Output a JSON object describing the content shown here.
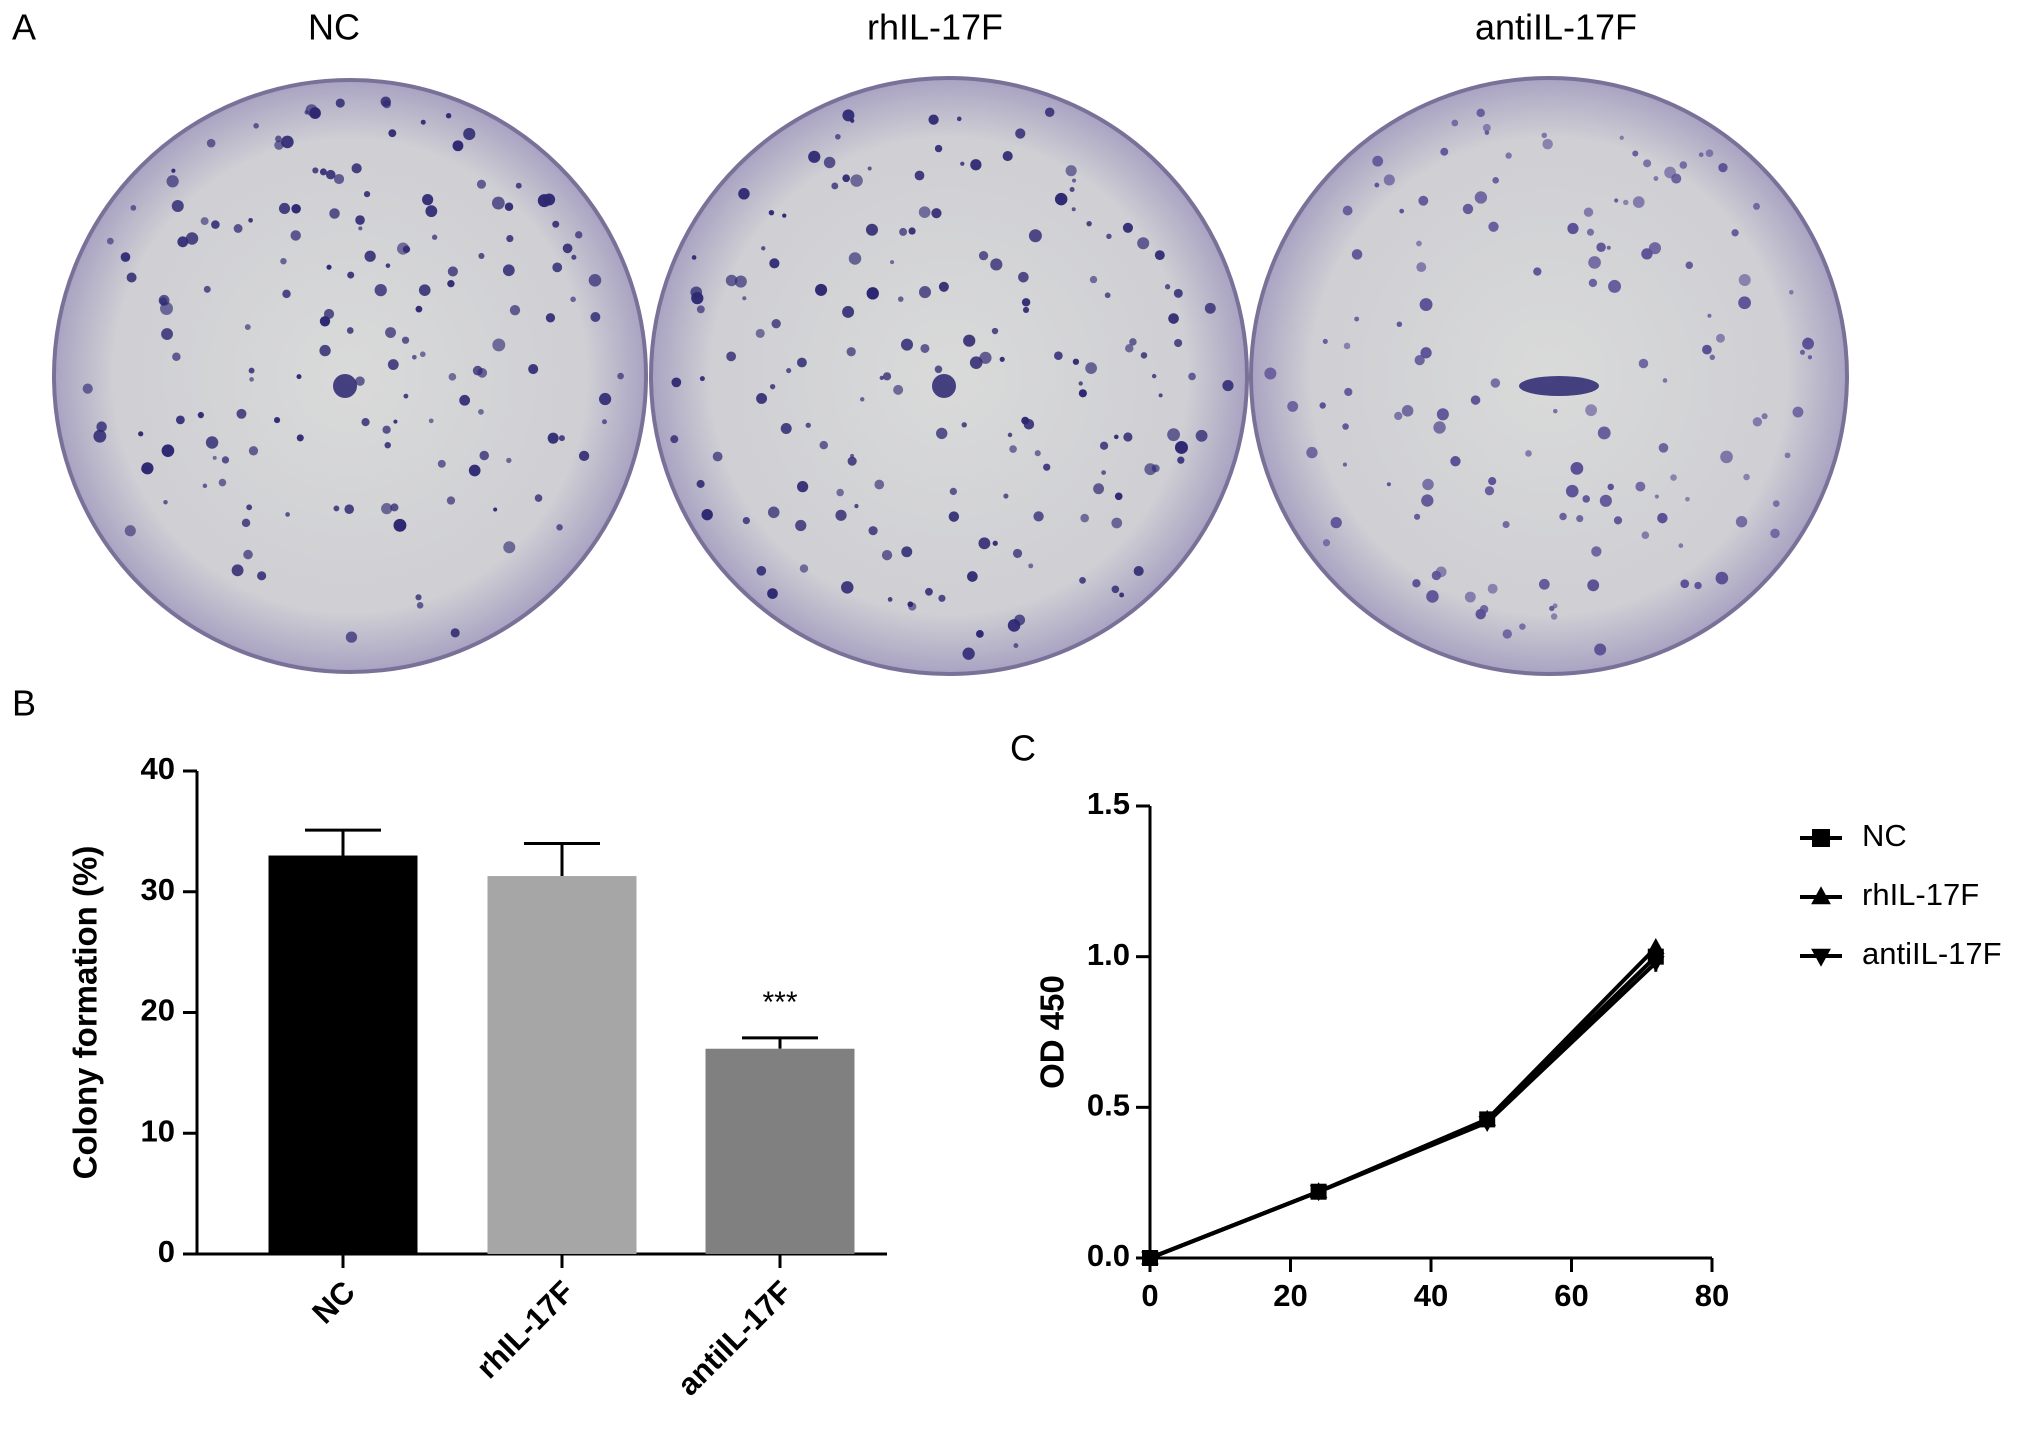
{
  "figure": {
    "panel_labels": [
      "A",
      "B",
      "C"
    ],
    "photo_titles": [
      "NC",
      "rhIL-17F",
      "antiIL-17F"
    ]
  },
  "chart_data": [
    {
      "type": "bar",
      "ylabel": "Colony formation (%)",
      "categories": [
        "NC",
        "rhIL-17F",
        "antiIL-17F"
      ],
      "values": [
        33,
        31.3,
        17
      ],
      "errors": [
        2.1,
        2.7,
        0.9
      ],
      "colors": [
        "#000000",
        "#a6a6a6",
        "#808080"
      ],
      "ylim": [
        0,
        40
      ],
      "yticks": [
        0,
        10,
        20,
        30,
        40
      ],
      "annotations": [
        {
          "text": "***",
          "category": "antiIL-17F"
        }
      ]
    },
    {
      "type": "line",
      "ylabel": "OD 450",
      "x": [
        0,
        24,
        48,
        72
      ],
      "series": [
        {
          "name": "NC",
          "color": "#000000",
          "marker": "square",
          "values": [
            0,
            0.22,
            0.46,
            1.0
          ],
          "errors": [
            0.01,
            0.01,
            0.01,
            0.03
          ]
        },
        {
          "name": "rhIL-17F",
          "color": "#000000",
          "marker": "triangle-up",
          "values": [
            0,
            0.22,
            0.46,
            1.03
          ],
          "errors": [
            0.01,
            0.01,
            0.01,
            0.02
          ]
        },
        {
          "name": "antiIL-17F",
          "color": "#000000",
          "marker": "triangle-down",
          "values": [
            0,
            0.22,
            0.45,
            0.98
          ],
          "errors": [
            0.01,
            0.01,
            0.01,
            0.03
          ]
        }
      ],
      "xlim": [
        0,
        80
      ],
      "xticks": [
        0,
        20,
        40,
        60,
        80
      ],
      "ylim": [
        0,
        1.5
      ],
      "yticks": [
        {
          "value": 0,
          "label": "0.0"
        },
        {
          "value": 0.5,
          "label": "0.5"
        },
        {
          "value": 1,
          "label": "1.0"
        },
        {
          "value": 1.5,
          "label": "1.5"
        }
      ],
      "legend": "right"
    }
  ]
}
